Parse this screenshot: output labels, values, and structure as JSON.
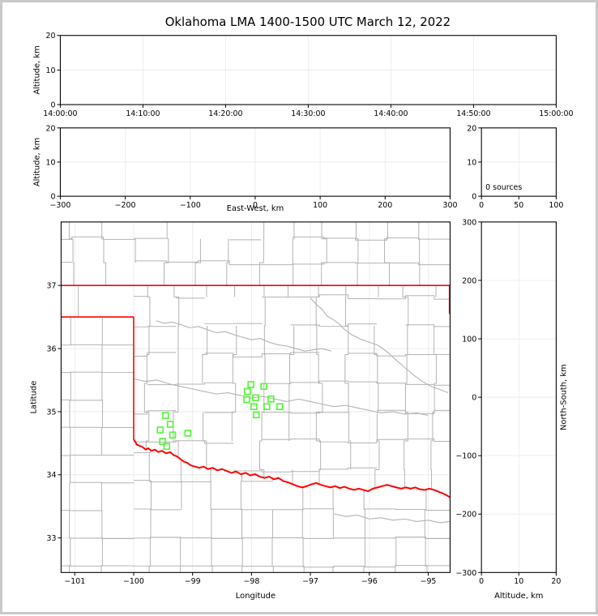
{
  "title": "Oklahoma LMA 1400-1500 UTC March 12, 2022",
  "colors": {
    "background": "#ffffff",
    "frame": "#000000",
    "grid": "#ececec",
    "county_line": "#b3b3b3",
    "river_gray": "#b3b3b3",
    "state_border": "#ff0000",
    "station_marker": "#58f53c",
    "outer_border": "#c9c9c9"
  },
  "chart_data": [
    {
      "id": "altitude_vs_time",
      "type": "scatter",
      "ylabel": "Altitude, km",
      "ylim": [
        0,
        20
      ],
      "yticks": [
        {
          "v": 0,
          "label": "0"
        },
        {
          "v": 10,
          "label": "10"
        },
        {
          "v": 20,
          "label": "20"
        }
      ],
      "xlim_seconds": [
        0,
        3600
      ],
      "xticks": [
        {
          "v": 0,
          "label": "14:00:00"
        },
        {
          "v": 600,
          "label": "14:10:00"
        },
        {
          "v": 1200,
          "label": "14:20:00"
        },
        {
          "v": 1800,
          "label": "14:30:00"
        },
        {
          "v": 2400,
          "label": "14:40:00"
        },
        {
          "v": 3000,
          "label": "14:50:00"
        },
        {
          "v": 3600,
          "label": "15:00:00"
        }
      ],
      "points": []
    },
    {
      "id": "altitude_vs_eastwest",
      "type": "scatter",
      "xlabel": "East-West, km",
      "ylabel": "Altitude, km",
      "xlim": [
        -300,
        300
      ],
      "xticks": [
        {
          "v": -300,
          "label": "−300"
        },
        {
          "v": -200,
          "label": "−200"
        },
        {
          "v": -100,
          "label": "−100"
        },
        {
          "v": 0,
          "label": "0"
        },
        {
          "v": 100,
          "label": "100"
        },
        {
          "v": 200,
          "label": "200"
        },
        {
          "v": 300,
          "label": "300"
        }
      ],
      "ylim": [
        0,
        20
      ],
      "yticks": [
        {
          "v": 0,
          "label": "0"
        },
        {
          "v": 10,
          "label": "10"
        },
        {
          "v": 20,
          "label": "20"
        }
      ],
      "points": []
    },
    {
      "id": "altitude_histogram",
      "type": "histogram",
      "annotation": "0 sources",
      "xlim": [
        0,
        100
      ],
      "xticks": [
        {
          "v": 0,
          "label": "0"
        },
        {
          "v": 50,
          "label": "50"
        },
        {
          "v": 100,
          "label": "100"
        }
      ],
      "ylim": [
        0,
        20
      ],
      "yticks": [
        {
          "v": 0,
          "label": "0"
        },
        {
          "v": 10,
          "label": "10"
        },
        {
          "v": 20,
          "label": "20"
        }
      ],
      "values": []
    },
    {
      "id": "plan_view_map",
      "type": "scatter",
      "xlabel": "Longitude",
      "ylabel": "Latitude",
      "xlim": [
        -101.23,
        -94.63
      ],
      "ylim": [
        32.45,
        38.01
      ],
      "xticks": [
        {
          "v": -101,
          "label": "−101"
        },
        {
          "v": -100,
          "label": "−100"
        },
        {
          "v": -99,
          "label": "−99"
        },
        {
          "v": -98,
          "label": "−98"
        },
        {
          "v": -97,
          "label": "−97"
        },
        {
          "v": -96,
          "label": "−96"
        },
        {
          "v": -95,
          "label": "−95"
        }
      ],
      "yticks": [
        {
          "v": 33,
          "label": "33"
        },
        {
          "v": 34,
          "label": "34"
        },
        {
          "v": 35,
          "label": "35"
        },
        {
          "v": 36,
          "label": "36"
        },
        {
          "v": 37,
          "label": "37"
        }
      ],
      "lma_stations": [
        [
          -99.46,
          34.94
        ],
        [
          -99.38,
          34.8
        ],
        [
          -99.55,
          34.71
        ],
        [
          -99.34,
          34.63
        ],
        [
          -99.08,
          34.66
        ],
        [
          -99.51,
          34.53
        ],
        [
          -99.44,
          34.45
        ],
        [
          -98.01,
          35.43
        ],
        [
          -97.79,
          35.4
        ],
        [
          -98.07,
          35.32
        ],
        [
          -98.08,
          35.19
        ],
        [
          -97.93,
          35.22
        ],
        [
          -97.67,
          35.2
        ],
        [
          -97.96,
          35.08
        ],
        [
          -97.74,
          35.08
        ],
        [
          -97.52,
          35.08
        ],
        [
          -97.92,
          34.95
        ]
      ],
      "sources": []
    },
    {
      "id": "northsouth_vs_altitude",
      "type": "scatter",
      "xlabel": "Altitude, km",
      "ylabel": "North-South, km",
      "xlim": [
        0,
        20
      ],
      "xticks": [
        {
          "v": 0,
          "label": "0"
        },
        {
          "v": 10,
          "label": "10"
        },
        {
          "v": 20,
          "label": "20"
        }
      ],
      "ylim": [
        -300,
        300
      ],
      "yticks": [
        {
          "v": 300,
          "label": "300"
        },
        {
          "v": 200,
          "label": "200"
        },
        {
          "v": 100,
          "label": "100"
        },
        {
          "v": 0,
          "label": "0"
        },
        {
          "v": -100,
          "label": "−100"
        },
        {
          "v": -200,
          "label": "−200"
        },
        {
          "v": -300,
          "label": "−300"
        }
      ],
      "points": []
    }
  ],
  "map_features": {
    "state_border_segments": [
      [
        [
          -101.232,
          37.0
        ],
        [
          -94.629,
          37.0
        ]
      ],
      [
        [
          -101.232,
          36.5
        ],
        [
          -100.0,
          36.5
        ]
      ],
      [
        [
          -100.0,
          36.5
        ],
        [
          -100.0,
          34.558
        ]
      ],
      [
        [
          -94.64,
          37.0
        ],
        [
          -94.64,
          36.55
        ]
      ]
    ],
    "red_river": [
      [
        -100.0,
        34.56
      ],
      [
        -99.97,
        34.52
      ],
      [
        -99.95,
        34.48
      ],
      [
        -99.9,
        34.46
      ],
      [
        -99.85,
        34.44
      ],
      [
        -99.8,
        34.4
      ],
      [
        -99.75,
        34.42
      ],
      [
        -99.7,
        34.38
      ],
      [
        -99.64,
        34.4
      ],
      [
        -99.58,
        34.36
      ],
      [
        -99.52,
        34.38
      ],
      [
        -99.45,
        34.34
      ],
      [
        -99.38,
        34.36
      ],
      [
        -99.32,
        34.31
      ],
      [
        -99.26,
        34.29
      ],
      [
        -99.21,
        34.25
      ],
      [
        -99.15,
        34.21
      ],
      [
        -99.09,
        34.19
      ],
      [
        -99.03,
        34.15
      ],
      [
        -98.96,
        34.13
      ],
      [
        -98.89,
        34.11
      ],
      [
        -98.81,
        34.13
      ],
      [
        -98.74,
        34.09
      ],
      [
        -98.66,
        34.11
      ],
      [
        -98.58,
        34.07
      ],
      [
        -98.5,
        34.09
      ],
      [
        -98.42,
        34.06
      ],
      [
        -98.34,
        34.03
      ],
      [
        -98.26,
        34.05
      ],
      [
        -98.18,
        34.01
      ],
      [
        -98.1,
        34.03
      ],
      [
        -98.02,
        33.99
      ],
      [
        -97.94,
        34.01
      ],
      [
        -97.86,
        33.97
      ],
      [
        -97.78,
        33.95
      ],
      [
        -97.7,
        33.97
      ],
      [
        -97.62,
        33.93
      ],
      [
        -97.54,
        33.95
      ],
      [
        -97.46,
        33.9
      ],
      [
        -97.38,
        33.88
      ],
      [
        -97.3,
        33.85
      ],
      [
        -97.22,
        33.82
      ],
      [
        -97.14,
        33.8
      ],
      [
        -97.06,
        33.82
      ],
      [
        -96.98,
        33.85
      ],
      [
        -96.9,
        33.87
      ],
      [
        -96.82,
        33.84
      ],
      [
        -96.74,
        33.82
      ],
      [
        -96.66,
        33.8
      ],
      [
        -96.58,
        33.82
      ],
      [
        -96.5,
        33.79
      ],
      [
        -96.42,
        33.81
      ],
      [
        -96.34,
        33.78
      ],
      [
        -96.26,
        33.76
      ],
      [
        -96.18,
        33.78
      ],
      [
        -96.1,
        33.76
      ],
      [
        -96.02,
        33.74
      ],
      [
        -95.94,
        33.78
      ],
      [
        -95.86,
        33.8
      ],
      [
        -95.78,
        33.82
      ],
      [
        -95.7,
        33.84
      ],
      [
        -95.62,
        33.82
      ],
      [
        -95.54,
        33.8
      ],
      [
        -95.46,
        33.78
      ],
      [
        -95.38,
        33.8
      ],
      [
        -95.3,
        33.78
      ],
      [
        -95.22,
        33.8
      ],
      [
        -95.14,
        33.77
      ],
      [
        -95.06,
        33.76
      ],
      [
        -94.98,
        33.78
      ],
      [
        -94.9,
        33.76
      ],
      [
        -94.82,
        33.73
      ],
      [
        -94.74,
        33.7
      ],
      [
        -94.66,
        33.66
      ],
      [
        -94.625,
        33.64
      ]
    ],
    "rivers": [
      [
        [
          -99.62,
          36.44
        ],
        [
          -99.48,
          36.4
        ],
        [
          -99.35,
          36.42
        ],
        [
          -99.2,
          36.38
        ],
        [
          -99.05,
          36.33
        ],
        [
          -98.9,
          36.35
        ],
        [
          -98.75,
          36.3
        ],
        [
          -98.6,
          36.25
        ],
        [
          -98.45,
          36.27
        ],
        [
          -98.3,
          36.22
        ],
        [
          -98.15,
          36.18
        ],
        [
          -98.0,
          36.14
        ],
        [
          -97.85,
          36.16
        ],
        [
          -97.7,
          36.1
        ],
        [
          -97.55,
          36.06
        ],
        [
          -97.4,
          36.04
        ],
        [
          -97.25,
          36.0
        ],
        [
          -97.1,
          35.96
        ],
        [
          -96.95,
          35.98
        ],
        [
          -96.8,
          36.0
        ],
        [
          -96.65,
          35.96
        ]
      ],
      [
        [
          -97.0,
          36.8
        ],
        [
          -96.9,
          36.7
        ],
        [
          -96.8,
          36.62
        ],
        [
          -96.72,
          36.52
        ],
        [
          -96.6,
          36.45
        ],
        [
          -96.5,
          36.38
        ],
        [
          -96.42,
          36.3
        ],
        [
          -96.3,
          36.22
        ],
        [
          -96.15,
          36.15
        ],
        [
          -96.0,
          36.1
        ],
        [
          -95.85,
          36.05
        ],
        [
          -95.7,
          35.95
        ],
        [
          -95.55,
          35.82
        ],
        [
          -95.4,
          35.7
        ],
        [
          -95.25,
          35.58
        ],
        [
          -95.1,
          35.48
        ],
        [
          -94.95,
          35.4
        ],
        [
          -94.8,
          35.35
        ],
        [
          -94.66,
          35.3
        ]
      ],
      [
        [
          -100.0,
          35.52
        ],
        [
          -99.8,
          35.48
        ],
        [
          -99.6,
          35.5
        ],
        [
          -99.4,
          35.44
        ],
        [
          -99.2,
          35.4
        ],
        [
          -99.0,
          35.36
        ],
        [
          -98.8,
          35.32
        ],
        [
          -98.6,
          35.28
        ],
        [
          -98.4,
          35.3
        ],
        [
          -98.2,
          35.26
        ],
        [
          -98.0,
          35.22
        ],
        [
          -97.8,
          35.24
        ],
        [
          -97.6,
          35.2
        ],
        [
          -97.4,
          35.16
        ],
        [
          -97.2,
          35.2
        ],
        [
          -97.0,
          35.16
        ],
        [
          -96.8,
          35.12
        ],
        [
          -96.6,
          35.08
        ],
        [
          -96.4,
          35.1
        ],
        [
          -96.2,
          35.06
        ],
        [
          -96.0,
          35.02
        ],
        [
          -95.8,
          34.98
        ],
        [
          -95.6,
          35.0
        ],
        [
          -95.4,
          34.96
        ],
        [
          -95.2,
          34.98
        ],
        [
          -95.0,
          34.94
        ]
      ],
      [
        [
          -96.6,
          33.38
        ],
        [
          -96.4,
          33.34
        ],
        [
          -96.2,
          33.36
        ],
        [
          -96.0,
          33.3
        ],
        [
          -95.8,
          33.32
        ],
        [
          -95.6,
          33.28
        ],
        [
          -95.4,
          33.3
        ],
        [
          -95.2,
          33.26
        ],
        [
          -95.0,
          33.28
        ],
        [
          -94.8,
          33.24
        ],
        [
          -94.64,
          33.26
        ]
      ]
    ],
    "county_regions": [
      {
        "name": "kansas",
        "lon_min": -101.232,
        "lon_max": -94.625,
        "lat_min": 37.0,
        "lat_max": 38.006,
        "v_start": -101.05,
        "v_step": 0.535,
        "h_start": 37.36,
        "h_step": 0.38,
        "jitter": 0.05,
        "skip": 0.15
      },
      {
        "name": "ok-panhandle",
        "lon_min": -101.232,
        "lon_max": -100.0,
        "lat_min": 36.5,
        "lat_max": 37.0,
        "v_start": -100.94,
        "v_step": 1.4,
        "h_start": 0,
        "h_step": 0,
        "jitter": 0,
        "skip": 0
      },
      {
        "name": "oklahoma",
        "lon_min": -100.0,
        "lon_max": -94.625,
        "lat_min": 33.6,
        "lat_max": 37.0,
        "v_start": -99.77,
        "v_step": 0.487,
        "h_start": 34.08,
        "h_step": 0.456,
        "jitter": 0.055,
        "skip": 0.14,
        "clip_bottom_river": true
      },
      {
        "name": "texas-panhandle",
        "lon_min": -101.232,
        "lon_max": -100.0,
        "lat_min": 32.452,
        "lat_max": 36.49,
        "v_start": -101.08,
        "v_step": 0.54,
        "h_start": 32.56,
        "h_step": 0.437,
        "jitter": 0.012,
        "skip": 0.08
      },
      {
        "name": "texas-east",
        "lon_min": -100.0,
        "lon_max": -94.625,
        "lat_min": 32.452,
        "lat_max": 34.56,
        "v_start": -99.72,
        "v_step": 0.52,
        "h_start": 32.55,
        "h_step": 0.45,
        "jitter": 0.02,
        "skip": 0.12,
        "clip_top_river": true
      }
    ]
  }
}
